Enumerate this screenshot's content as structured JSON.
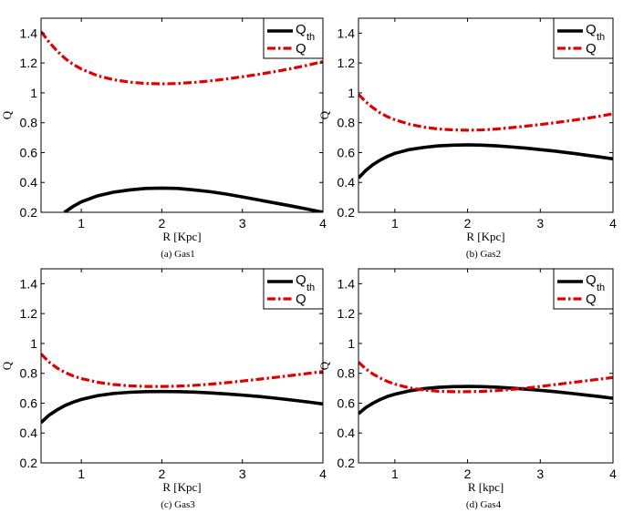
{
  "figure": {
    "legend_labels": {
      "qth_main": "Q",
      "qth_sub": "th",
      "q": "Q"
    },
    "colors": {
      "qth": "#000000",
      "q": "#e00000"
    }
  },
  "chart_data": [
    {
      "type": "line",
      "caption": "(a) Gas1",
      "xlabel": "R [Kpc]",
      "ylabel": "Q",
      "xlim": [
        0.5,
        4
      ],
      "ylim": [
        0.2,
        1.5
      ],
      "xticks": [
        1,
        2,
        3,
        4
      ],
      "yticks": [
        0.2,
        0.4,
        0.6,
        0.8,
        1,
        1.2,
        1.4
      ],
      "legend_position": "top-right",
      "series": [
        {
          "name": "Q_th",
          "style": "solid",
          "x": [
            0.79,
            0.9,
            1.0,
            1.2,
            1.4,
            1.6,
            1.8,
            2.0,
            2.2,
            2.4,
            2.6,
            2.8,
            3.0,
            3.2,
            3.4,
            3.6,
            3.8,
            4.0
          ],
          "y": [
            0.2,
            0.24,
            0.27,
            0.31,
            0.335,
            0.35,
            0.36,
            0.362,
            0.36,
            0.35,
            0.338,
            0.322,
            0.303,
            0.283,
            0.263,
            0.243,
            0.222,
            0.2
          ]
        },
        {
          "name": "Q",
          "style": "dashdot",
          "x": [
            0.5,
            0.6,
            0.7,
            0.8,
            0.9,
            1.0,
            1.2,
            1.4,
            1.6,
            1.8,
            2.0,
            2.2,
            2.4,
            2.6,
            2.8,
            3.0,
            3.2,
            3.4,
            3.6,
            3.8,
            4.0
          ],
          "y": [
            1.41,
            1.34,
            1.28,
            1.23,
            1.19,
            1.16,
            1.115,
            1.088,
            1.072,
            1.063,
            1.06,
            1.063,
            1.07,
            1.08,
            1.093,
            1.108,
            1.124,
            1.142,
            1.162,
            1.184,
            1.21
          ]
        }
      ]
    },
    {
      "type": "line",
      "caption": "(b) Gas2",
      "xlabel": "R [Kpc]",
      "ylabel": "Q",
      "xlim": [
        0.5,
        4
      ],
      "ylim": [
        0.2,
        1.5
      ],
      "xticks": [
        1,
        2,
        3,
        4
      ],
      "yticks": [
        0.2,
        0.4,
        0.6,
        0.8,
        1,
        1.2,
        1.4
      ],
      "legend_position": "top-right",
      "series": [
        {
          "name": "Q_th",
          "style": "solid",
          "x": [
            0.5,
            0.6,
            0.7,
            0.8,
            0.9,
            1.0,
            1.2,
            1.4,
            1.6,
            1.8,
            2.0,
            2.2,
            2.4,
            2.6,
            2.8,
            3.0,
            3.2,
            3.4,
            3.6,
            3.8,
            4.0
          ],
          "y": [
            0.43,
            0.48,
            0.52,
            0.55,
            0.575,
            0.595,
            0.62,
            0.635,
            0.645,
            0.65,
            0.652,
            0.65,
            0.645,
            0.638,
            0.63,
            0.62,
            0.61,
            0.598,
            0.585,
            0.572,
            0.558
          ]
        },
        {
          "name": "Q",
          "style": "dashdot",
          "x": [
            0.5,
            0.6,
            0.7,
            0.8,
            0.9,
            1.0,
            1.2,
            1.4,
            1.6,
            1.8,
            2.0,
            2.2,
            2.4,
            2.6,
            2.8,
            3.0,
            3.2,
            3.4,
            3.6,
            3.8,
            4.0
          ],
          "y": [
            0.99,
            0.94,
            0.9,
            0.865,
            0.84,
            0.82,
            0.79,
            0.77,
            0.758,
            0.752,
            0.75,
            0.752,
            0.758,
            0.767,
            0.777,
            0.788,
            0.8,
            0.813,
            0.827,
            0.842,
            0.86
          ]
        }
      ]
    },
    {
      "type": "line",
      "caption": "(c) Gas3",
      "xlabel": "R [Kpc]",
      "ylabel": "Q",
      "xlim": [
        0.5,
        4
      ],
      "ylim": [
        0.2,
        1.5
      ],
      "xticks": [
        1,
        2,
        3,
        4
      ],
      "yticks": [
        0.2,
        0.4,
        0.6,
        0.8,
        1,
        1.2,
        1.4
      ],
      "legend_position": "top-right",
      "series": [
        {
          "name": "Q_th",
          "style": "solid",
          "x": [
            0.5,
            0.6,
            0.7,
            0.8,
            0.9,
            1.0,
            1.2,
            1.4,
            1.6,
            1.8,
            2.0,
            2.2,
            2.4,
            2.6,
            2.8,
            3.0,
            3.2,
            3.4,
            3.6,
            3.8,
            4.0
          ],
          "y": [
            0.47,
            0.52,
            0.555,
            0.585,
            0.607,
            0.625,
            0.65,
            0.665,
            0.673,
            0.677,
            0.678,
            0.677,
            0.674,
            0.669,
            0.662,
            0.654,
            0.645,
            0.634,
            0.622,
            0.609,
            0.595
          ]
        },
        {
          "name": "Q",
          "style": "dashdot",
          "x": [
            0.5,
            0.6,
            0.7,
            0.8,
            0.9,
            1.0,
            1.2,
            1.4,
            1.6,
            1.8,
            2.0,
            2.2,
            2.4,
            2.6,
            2.8,
            3.0,
            3.2,
            3.4,
            3.6,
            3.8,
            4.0
          ],
          "y": [
            0.93,
            0.875,
            0.835,
            0.805,
            0.782,
            0.765,
            0.74,
            0.725,
            0.716,
            0.712,
            0.712,
            0.714,
            0.719,
            0.727,
            0.737,
            0.748,
            0.76,
            0.772,
            0.785,
            0.798,
            0.812
          ]
        }
      ]
    },
    {
      "type": "line",
      "caption": "(d) Gas4",
      "xlabel": "R [kpc]",
      "ylabel": "Q",
      "xlim": [
        0.5,
        4
      ],
      "ylim": [
        0.2,
        1.5
      ],
      "xticks": [
        1,
        2,
        3,
        4
      ],
      "yticks": [
        0.2,
        0.4,
        0.6,
        0.8,
        1,
        1.2,
        1.4
      ],
      "legend_position": "top-right",
      "series": [
        {
          "name": "Q_th",
          "style": "solid",
          "x": [
            0.5,
            0.6,
            0.7,
            0.8,
            0.9,
            1.0,
            1.2,
            1.4,
            1.6,
            1.8,
            2.0,
            2.2,
            2.4,
            2.6,
            2.8,
            3.0,
            3.2,
            3.4,
            3.6,
            3.8,
            4.0
          ],
          "y": [
            0.53,
            0.57,
            0.6,
            0.625,
            0.645,
            0.66,
            0.682,
            0.697,
            0.706,
            0.711,
            0.712,
            0.711,
            0.707,
            0.701,
            0.694,
            0.686,
            0.677,
            0.667,
            0.656,
            0.645,
            0.633
          ]
        },
        {
          "name": "Q",
          "style": "dashdot",
          "x": [
            0.5,
            0.6,
            0.7,
            0.8,
            0.9,
            1.0,
            1.2,
            1.4,
            1.6,
            1.8,
            2.0,
            2.2,
            2.4,
            2.6,
            2.8,
            3.0,
            3.2,
            3.4,
            3.6,
            3.8,
            4.0
          ],
          "y": [
            0.875,
            0.83,
            0.795,
            0.768,
            0.745,
            0.728,
            0.702,
            0.688,
            0.68,
            0.677,
            0.677,
            0.679,
            0.684,
            0.692,
            0.701,
            0.712,
            0.724,
            0.736,
            0.748,
            0.76,
            0.772
          ]
        }
      ]
    }
  ]
}
